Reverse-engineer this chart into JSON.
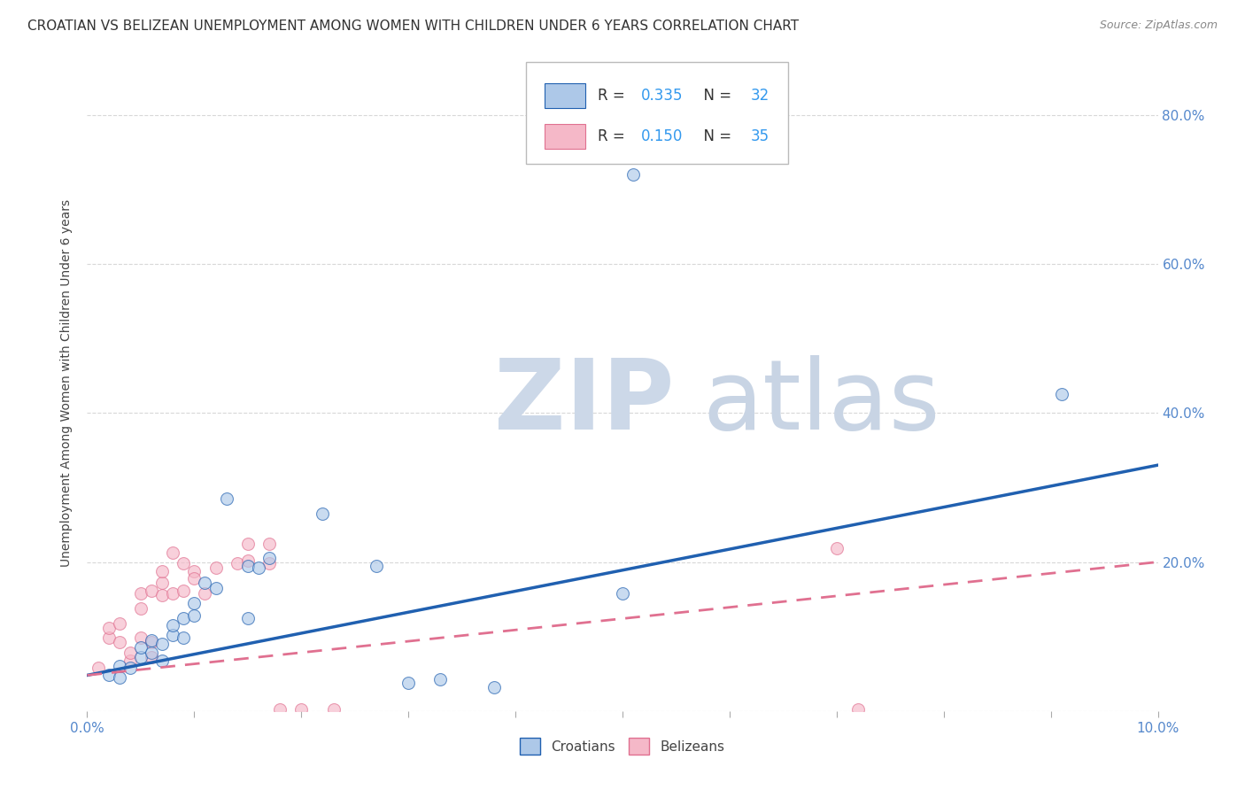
{
  "title": "CROATIAN VS BELIZEAN UNEMPLOYMENT AMONG WOMEN WITH CHILDREN UNDER 6 YEARS CORRELATION CHART",
  "source": "Source: ZipAtlas.com",
  "ylabel": "Unemployment Among Women with Children Under 6 years",
  "xlim": [
    0.0,
    0.1
  ],
  "ylim": [
    0.0,
    0.88
  ],
  "croatian_color": "#adc8e8",
  "belizean_color": "#f5b8c8",
  "croatian_line_color": "#2060b0",
  "belizean_line_color": "#e07090",
  "watermark_zip_color": "#ccd8e8",
  "watermark_atlas_color": "#c8d4e4",
  "legend_items": [
    {
      "R": "0.335",
      "N": "32",
      "patch_color": "#adc8e8",
      "patch_edge": "#2060b0"
    },
    {
      "R": "0.150",
      "N": "35",
      "patch_color": "#f5b8c8",
      "patch_edge": "#e07090"
    }
  ],
  "croatian_scatter_x": [
    0.002,
    0.003,
    0.003,
    0.004,
    0.005,
    0.005,
    0.006,
    0.006,
    0.007,
    0.007,
    0.008,
    0.008,
    0.009,
    0.009,
    0.01,
    0.01,
    0.011,
    0.012,
    0.013,
    0.015,
    0.015,
    0.016,
    0.017,
    0.022,
    0.027,
    0.03,
    0.033,
    0.038,
    0.05,
    0.051,
    0.091
  ],
  "croatian_scatter_y": [
    0.048,
    0.045,
    0.06,
    0.058,
    0.072,
    0.085,
    0.078,
    0.095,
    0.068,
    0.09,
    0.102,
    0.115,
    0.098,
    0.125,
    0.128,
    0.145,
    0.172,
    0.165,
    0.285,
    0.125,
    0.195,
    0.192,
    0.205,
    0.265,
    0.195,
    0.038,
    0.042,
    0.032,
    0.158,
    0.72,
    0.425
  ],
  "belizean_scatter_x": [
    0.001,
    0.002,
    0.002,
    0.003,
    0.003,
    0.004,
    0.004,
    0.005,
    0.005,
    0.005,
    0.006,
    0.006,
    0.006,
    0.007,
    0.007,
    0.007,
    0.008,
    0.008,
    0.009,
    0.009,
    0.01,
    0.01,
    0.011,
    0.012,
    0.014,
    0.015,
    0.015,
    0.017,
    0.017,
    0.018,
    0.02,
    0.023,
    0.07,
    0.072
  ],
  "belizean_scatter_y": [
    0.058,
    0.098,
    0.112,
    0.092,
    0.118,
    0.068,
    0.078,
    0.098,
    0.138,
    0.158,
    0.072,
    0.092,
    0.162,
    0.155,
    0.172,
    0.188,
    0.158,
    0.212,
    0.162,
    0.198,
    0.188,
    0.178,
    0.158,
    0.192,
    0.198,
    0.202,
    0.225,
    0.198,
    0.225,
    0.002,
    0.002,
    0.002,
    0.218,
    0.002
  ],
  "croatian_trend": [
    0.048,
    0.33
  ],
  "belizean_trend": [
    0.048,
    0.2
  ],
  "background_color": "#ffffff",
  "grid_color": "#d8d8d8",
  "title_fontsize": 11,
  "ylabel_fontsize": 10,
  "tick_fontsize": 11,
  "scatter_size": 100,
  "scatter_alpha": 0.65,
  "scatter_linewidth": 0.8
}
